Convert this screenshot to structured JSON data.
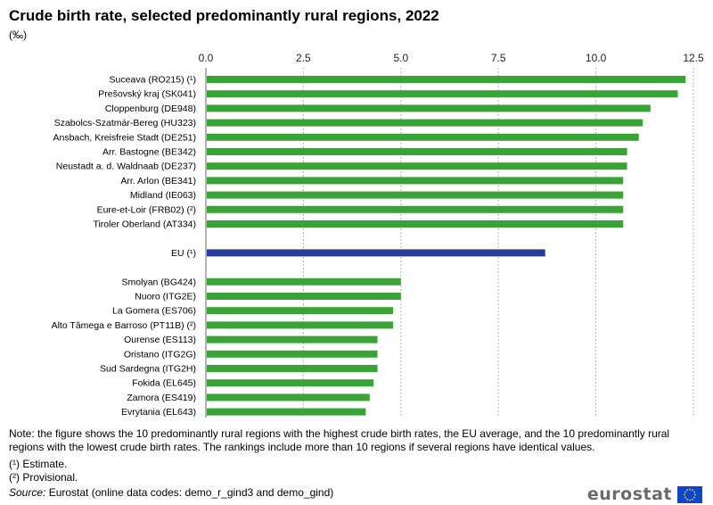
{
  "chart_data": {
    "type": "bar",
    "orientation": "horizontal",
    "title": "Crude birth rate, selected predominantly rural regions, 2022",
    "subtitle": "(‰)",
    "xlim": [
      0,
      12.5
    ],
    "xticks": [
      "0.0",
      "2.5",
      "5.0",
      "7.5",
      "10.0",
      "12.5"
    ],
    "grid": true,
    "groups": [
      {
        "color": "#3aa335",
        "bars": [
          {
            "label": "Suceava (RO215) (¹)",
            "value": 12.3
          },
          {
            "label": "Prešovský kraj (SK041)",
            "value": 12.1
          },
          {
            "label": "Cloppenburg (DE948)",
            "value": 11.4
          },
          {
            "label": "Szabolcs-Szatmár-Bereg (HU323)",
            "value": 11.2
          },
          {
            "label": "Ansbach, Kreisfreie Stadt (DE251)",
            "value": 11.1
          },
          {
            "label": "Arr. Bastogne (BE342)",
            "value": 10.8
          },
          {
            "label": "Neustadt a. d. Waldnaab (DE237)",
            "value": 10.8
          },
          {
            "label": "Arr. Arlon (BE341)",
            "value": 10.7
          },
          {
            "label": "Midland (IE063)",
            "value": 10.7
          },
          {
            "label": "Eure-et-Loir (FRB02) (²)",
            "value": 10.7
          },
          {
            "label": "Tiroler Oberland (AT334)",
            "value": 10.7
          }
        ]
      },
      {
        "color": "#2a3c96",
        "bars": [
          {
            "label": "EU (¹)",
            "value": 8.7
          }
        ]
      },
      {
        "color": "#3aa335",
        "bars": [
          {
            "label": "Smolyan (BG424)",
            "value": 5.0
          },
          {
            "label": "Nuoro (ITG2E)",
            "value": 5.0
          },
          {
            "label": "La Gomera (ES706)",
            "value": 4.8
          },
          {
            "label": "Alto Tâmega e Barroso (PT11B) (²)",
            "value": 4.8
          },
          {
            "label": "Ourense (ES113)",
            "value": 4.4
          },
          {
            "label": "Oristano (ITG2G)",
            "value": 4.4
          },
          {
            "label": "Sud Sardegna (ITG2H)",
            "value": 4.4
          },
          {
            "label": "Fokida (EL645)",
            "value": 4.3
          },
          {
            "label": "Zamora (ES419)",
            "value": 4.2
          },
          {
            "label": "Evrytania (EL643)",
            "value": 4.1
          }
        ]
      }
    ]
  },
  "notes": {
    "main": "Note: the figure shows the 10 predominantly rural regions with the highest crude birth rates, the EU average, and the 10 predominantly rural regions with the lowest crude birth rates. The rankings include more than 10 regions if several regions have identical values.",
    "estimate": "(¹) Estimate.",
    "provisional": "(²) Provisional."
  },
  "source": {
    "label": "Source:",
    "text": "Eurostat (online data codes: demo_r_gind3 and demo_gind)"
  },
  "logo": {
    "text": "eurostat",
    "flag_color": "#0e47cb",
    "star_color": "#ffd617"
  }
}
